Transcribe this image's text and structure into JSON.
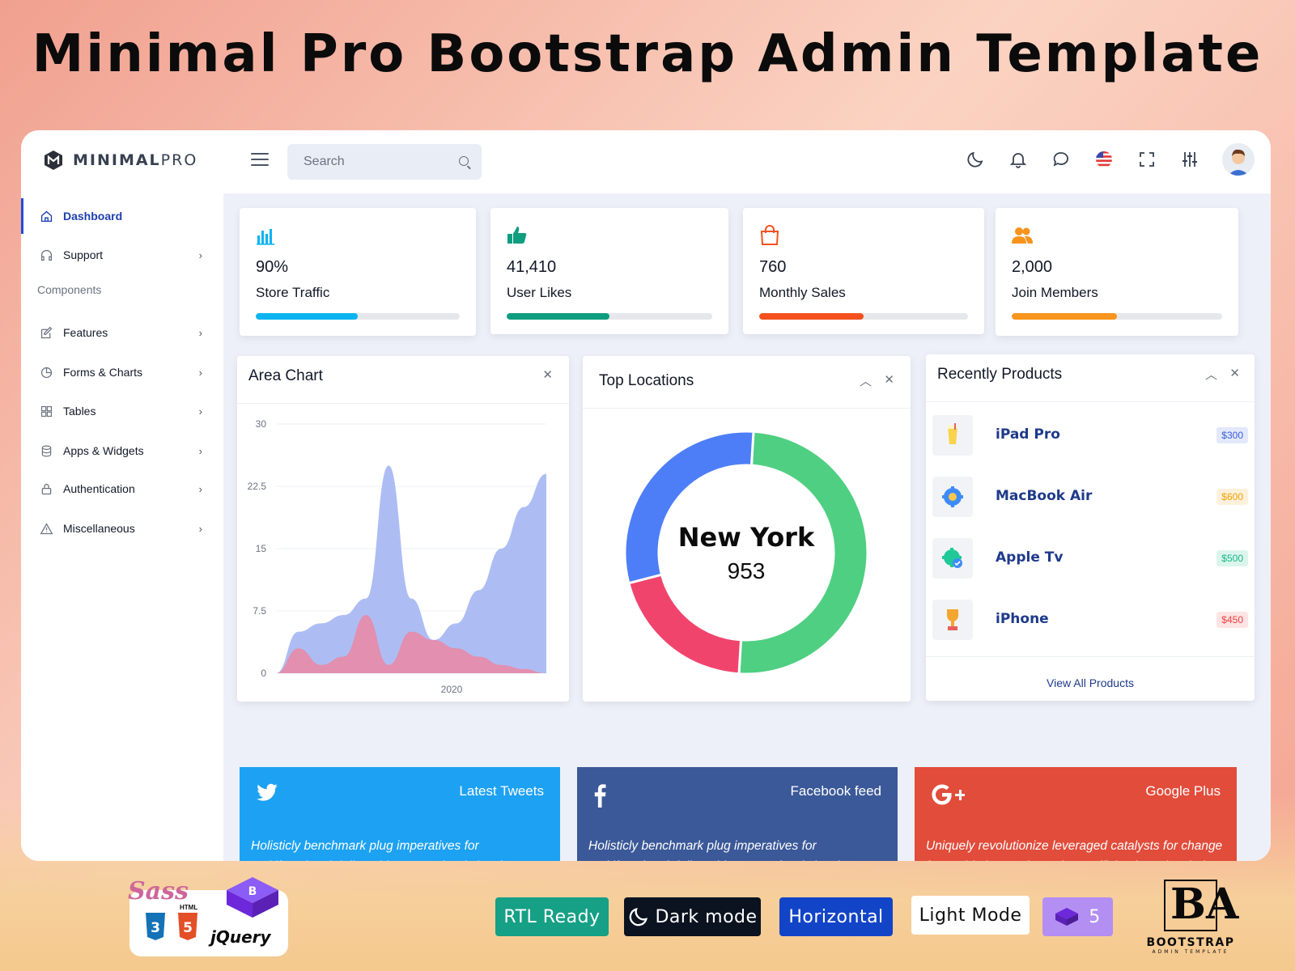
{
  "hero": {
    "title": "Minimal Pro Bootstrap Admin Template"
  },
  "brand": {
    "name_bold": "MINIMAL",
    "name_light": "PRO"
  },
  "search": {
    "placeholder": "Search"
  },
  "topbar": {
    "icons": [
      "moon-icon",
      "bell-icon",
      "chat-icon",
      "us-flag-icon",
      "fullscreen-icon",
      "sliders-icon",
      "avatar"
    ]
  },
  "sidebar": {
    "items": [
      {
        "label": "Dashboard",
        "icon": "home-icon",
        "active": true,
        "chevron": false
      },
      {
        "label": "Support",
        "icon": "headphones-icon",
        "active": false,
        "chevron": true
      },
      {
        "label": "Features",
        "icon": "edit-icon",
        "active": false,
        "chevron": true
      },
      {
        "label": "Forms & Charts",
        "icon": "pie-icon",
        "active": false,
        "chevron": true
      },
      {
        "label": "Tables",
        "icon": "grid-icon",
        "active": false,
        "chevron": true
      },
      {
        "label": "Apps & Widgets",
        "icon": "database-icon",
        "active": false,
        "chevron": true
      },
      {
        "label": "Authentication",
        "icon": "lock-icon",
        "active": false,
        "chevron": true
      },
      {
        "label": "Miscellaneous",
        "icon": "warning-icon",
        "active": false,
        "chevron": true
      }
    ],
    "section_label": "Components",
    "chevron_glyph": "›"
  },
  "stats": [
    {
      "value": "90%",
      "label": "Store Traffic",
      "progress": 0.5,
      "color": "#0ab4f0",
      "icon": "bar-chart-icon"
    },
    {
      "value": "41,410",
      "label": "User Likes",
      "progress": 0.5,
      "color": "#0f9d80",
      "icon": "thumbs-up-icon"
    },
    {
      "value": "760",
      "label": "Monthly Sales",
      "progress": 0.5,
      "color": "#f4511e",
      "icon": "shopping-bag-icon"
    },
    {
      "value": "2,000",
      "label": "Join Members",
      "progress": 0.5,
      "color": "#f7941d",
      "icon": "users-icon"
    }
  ],
  "area_chart": {
    "title": "Area Chart",
    "close_glyph": "✕"
  },
  "chart_data": [
    {
      "type": "area",
      "title": "Area Chart",
      "xlabel": "",
      "ylabel": "",
      "x_tick_labels": [
        "2020"
      ],
      "y_ticks": [
        "30",
        "22.5",
        "15",
        "7.5",
        "0"
      ],
      "ylim": [
        0,
        30
      ],
      "x": [
        0,
        1,
        2,
        3,
        4,
        5,
        6,
        7,
        8,
        9,
        10,
        11,
        12
      ],
      "series": [
        {
          "values": [
            0,
            5,
            6,
            7,
            9,
            25,
            9,
            4,
            6,
            10,
            15,
            20,
            24
          ],
          "color": "#a9b9f3"
        },
        {
          "values": [
            0,
            3,
            1,
            2,
            7,
            1,
            5,
            4,
            3,
            2,
            1,
            0.5,
            0
          ],
          "color": "#e88aa8"
        }
      ],
      "grid": true
    },
    {
      "type": "pie",
      "title": "Top Locations",
      "center_label": "New York",
      "center_value": "953",
      "slices": [
        {
          "value": 50,
          "color": "#4fcf81"
        },
        {
          "value": 20,
          "color": "#f1446d"
        },
        {
          "value": 30,
          "color": "#4d7ef7"
        }
      ]
    }
  ],
  "top_locations": {
    "title": "Top Locations",
    "center_label": "New York",
    "center_value": "953",
    "collapse_glyph": "︿",
    "close_glyph": "✕"
  },
  "products": {
    "title": "Recently Products",
    "collapse_glyph": "︿",
    "close_glyph": "✕",
    "items": [
      {
        "name": "iPad Pro",
        "price": "$300",
        "badge_color": "#3b5bdb",
        "badge_bg": "#e3e9fb",
        "icon": "drink-icon"
      },
      {
        "name": "MacBook Air",
        "price": "$600",
        "badge_color": "#f59f00",
        "badge_bg": "#fdf1dc",
        "icon": "gear-icon"
      },
      {
        "name": "Apple Tv",
        "price": "$500",
        "badge_color": "#12b886",
        "badge_bg": "#dcf5ec",
        "icon": "settings-check-icon"
      },
      {
        "name": "iPhone",
        "price": "$450",
        "badge_color": "#f03e3e",
        "badge_bg": "#fde4e4",
        "icon": "trophy-icon"
      }
    ],
    "view_all": "View All Products"
  },
  "social": [
    {
      "title": "Latest Tweets",
      "text": "Holisticly benchmark plug imperatives for multifunctional deliverables. Seamlessly incubate cross functional action.",
      "bg": "#1da1f2",
      "icon": "twitter-icon"
    },
    {
      "title": "Facebook feed",
      "text": "Holisticly benchmark plug imperatives for multifunctional deliverables. Seamlessly incubate cross functional action.",
      "bg": "#3b5998",
      "icon": "facebook-icon"
    },
    {
      "title": "Google Plus",
      "text": "Uniquely revolutionize leveraged catalysts for change for world-class web services. Efficiently underwhelm competitive.",
      "bg": "#e14c3b",
      "icon": "google-plus-icon"
    }
  ],
  "badges": [
    {
      "label": "RTL Ready",
      "bg": "#16a085",
      "fg": "#ffffff"
    },
    {
      "label": "Dark mode",
      "bg": "#0b1320",
      "fg": "#ffffff"
    },
    {
      "label": "Horizontal",
      "bg": "#1244c7",
      "fg": "#ffffff"
    },
    {
      "label": "Light Mode",
      "bg": "#ffffff",
      "fg": "#111111"
    },
    {
      "label": "5",
      "bg": "#b38ef3",
      "fg": "#ffffff"
    }
  ],
  "tech_logos": {
    "sass": "Sass",
    "html": "HTML",
    "css_num": "3",
    "html_num": "5",
    "jquery": "jQuery"
  },
  "bootstrap_logo": {
    "letters": "BA",
    "text": "BOOTSTRAP",
    "subtext": "ADMIN TEMPLATE"
  }
}
